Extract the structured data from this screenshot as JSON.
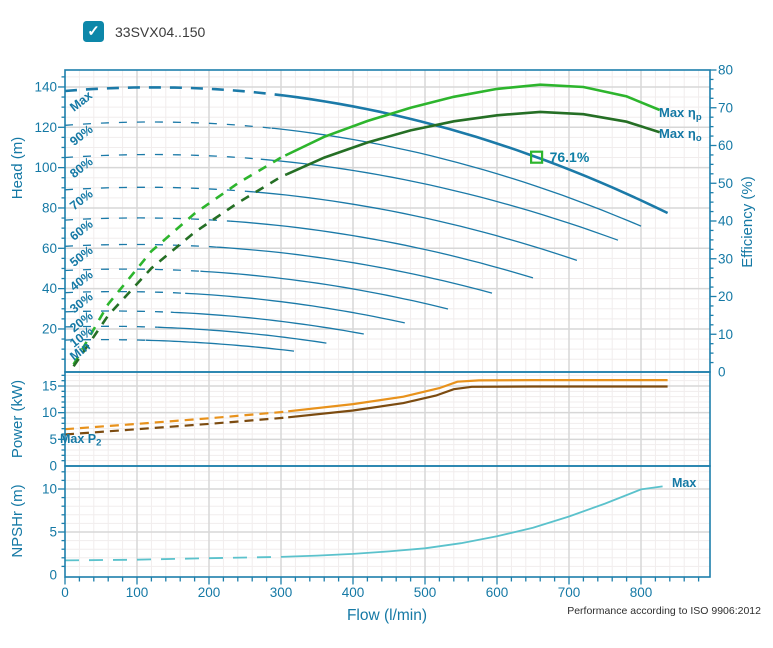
{
  "header": {
    "checkbox_checked": true,
    "series_label": "33SVX04..150"
  },
  "footer": {
    "note": "Performance according to ISO 9906:2012"
  },
  "colors": {
    "teal_text": "#1579A5",
    "border": "#1D7FAB",
    "curve_teal": "#1B7AA8",
    "green_bright": "#2DB52D",
    "green_dark": "#256F25",
    "orange": "#E8921C",
    "brown": "#7C4B10",
    "cyan": "#5BC2CC",
    "grid_major": "#D7D7D7",
    "grid_minor": "#F1EDED",
    "checkbox": "#0D87A9"
  },
  "chart_data": {
    "type": "line",
    "series": "33SVX04..150",
    "xlabel": "Flow (l/min)",
    "x_axis": {
      "range": [
        0,
        900
      ],
      "major_step": 100,
      "minor_step": 20,
      "tick_labels": [
        0,
        100,
        200,
        300,
        400,
        500,
        600,
        700,
        800
      ]
    },
    "head_panel": {
      "ylabel": "Head (m)",
      "y_range": [
        0,
        149
      ],
      "tick_labels": [
        20,
        40,
        60,
        80,
        100,
        120,
        140
      ],
      "minor_step": 5,
      "right_ylabel": "Efficiency (%)",
      "right_range": [
        0,
        80
      ],
      "right_tick_labels": [
        0,
        10,
        20,
        30,
        40,
        50,
        60,
        70,
        80
      ],
      "speed_curves": [
        {
          "label": "Max",
          "shutoff_head": 138,
          "max_flow": 837,
          "head_at_max_flow": 77.5,
          "min_flow": 300,
          "thick": true
        },
        {
          "label": "90%",
          "shutoff_head": 121,
          "max_flow": 800,
          "head_at_max_flow": 71,
          "min_flow": 287
        },
        {
          "label": "80%",
          "shutoff_head": 105,
          "max_flow": 768,
          "head_at_max_flow": 64,
          "min_flow": 272
        },
        {
          "label": "70%",
          "shutoff_head": 89,
          "max_flow": 711,
          "head_at_max_flow": 54,
          "min_flow": 252
        },
        {
          "label": "60%",
          "shutoff_head": 74,
          "max_flow": 650,
          "head_at_max_flow": 45.3,
          "min_flow": 230
        },
        {
          "label": "50%",
          "shutoff_head": 61,
          "max_flow": 593,
          "head_at_max_flow": 37.8,
          "min_flow": 210
        },
        {
          "label": "40%",
          "shutoff_head": 49,
          "max_flow": 532,
          "head_at_max_flow": 29.9,
          "min_flow": 188
        },
        {
          "label": "30%",
          "shutoff_head": 38,
          "max_flow": 472,
          "head_at_max_flow": 23,
          "min_flow": 167
        },
        {
          "label": "20%",
          "shutoff_head": 28.5,
          "max_flow": 415,
          "head_at_max_flow": 17.5,
          "min_flow": 147
        },
        {
          "label": "10%",
          "shutoff_head": 21,
          "max_flow": 363,
          "head_at_max_flow": 13,
          "min_flow": 128
        },
        {
          "label": "Min",
          "shutoff_head": 14.5,
          "max_flow": 318,
          "head_at_max_flow": 9,
          "min_flow": 112
        }
      ],
      "efficiency_curves": [
        {
          "label": "Max  η",
          "label_sub": "p",
          "color_key": "green_bright",
          "solid_from": 306,
          "points": [
            [
              12,
              2
            ],
            [
              60,
              18
            ],
            [
              120,
              32
            ],
            [
              180,
              42
            ],
            [
              240,
              50
            ],
            [
              300,
              56.8
            ],
            [
              360,
              62.3
            ],
            [
              420,
              66.5
            ],
            [
              480,
              70
            ],
            [
              540,
              72.9
            ],
            [
              600,
              75
            ],
            [
              660,
              76.1
            ],
            [
              720,
              75.5
            ],
            [
              780,
              73
            ],
            [
              826,
              69.4
            ]
          ]
        },
        {
          "label": "Max  η",
          "label_sub": "o",
          "color_key": "green_dark",
          "solid_from": 308,
          "points": [
            [
              12,
              1.5
            ],
            [
              60,
              15
            ],
            [
              120,
              27.5
            ],
            [
              180,
              37
            ],
            [
              240,
              44.8
            ],
            [
              300,
              51.7
            ],
            [
              360,
              56.8
            ],
            [
              420,
              60.8
            ],
            [
              480,
              64
            ],
            [
              540,
              66.4
            ],
            [
              600,
              68
            ],
            [
              660,
              68.9
            ],
            [
              720,
              68.3
            ],
            [
              780,
              66.3
            ],
            [
              826,
              63.5
            ]
          ]
        }
      ],
      "duty_point": {
        "flow": 655,
        "efficiency_text": "76.1%"
      }
    },
    "power_panel": {
      "ylabel": "Power (kW)",
      "y_range": [
        0,
        17.6
      ],
      "tick_labels": [
        0,
        5,
        10,
        15
      ],
      "minor_step": 1,
      "annotation": {
        "text": "Max P",
        "sub": "2"
      },
      "curves": [
        {
          "color_key": "orange",
          "solid_from": 310,
          "points": [
            [
              0,
              6.9
            ],
            [
              100,
              7.9
            ],
            [
              200,
              8.95
            ],
            [
              300,
              10.1
            ],
            [
              400,
              11.6
            ],
            [
              470,
              13
            ],
            [
              520,
              14.6
            ],
            [
              545,
              15.8
            ],
            [
              575,
              16.05
            ],
            [
              650,
              16.1
            ],
            [
              750,
              16.1
            ],
            [
              837,
              16.1
            ]
          ]
        },
        {
          "color_key": "brown",
          "solid_from": 310,
          "points": [
            [
              0,
              5.9
            ],
            [
              100,
              6.9
            ],
            [
              200,
              7.9
            ],
            [
              300,
              9.0
            ],
            [
              400,
              10.4
            ],
            [
              470,
              11.8
            ],
            [
              515,
              13.2
            ],
            [
              540,
              14.4
            ],
            [
              565,
              14.85
            ],
            [
              650,
              14.9
            ],
            [
              750,
              14.9
            ],
            [
              837,
              14.9
            ]
          ]
        }
      ]
    },
    "npsh_panel": {
      "ylabel": "NPSHr (m)",
      "y_range": [
        0,
        12.8
      ],
      "tick_labels": [
        0,
        5,
        10
      ],
      "minor_step": 1,
      "annotation": "Max",
      "curve": {
        "color_key": "cyan",
        "solid_from": 300,
        "points": [
          [
            0,
            1.7
          ],
          [
            100,
            1.78
          ],
          [
            200,
            1.95
          ],
          [
            300,
            2.1
          ],
          [
            350,
            2.25
          ],
          [
            400,
            2.45
          ],
          [
            450,
            2.75
          ],
          [
            500,
            3.1
          ],
          [
            550,
            3.7
          ],
          [
            600,
            4.5
          ],
          [
            650,
            5.5
          ],
          [
            700,
            6.8
          ],
          [
            750,
            8.3
          ],
          [
            800,
            9.95
          ],
          [
            830,
            10.3
          ]
        ]
      }
    }
  }
}
